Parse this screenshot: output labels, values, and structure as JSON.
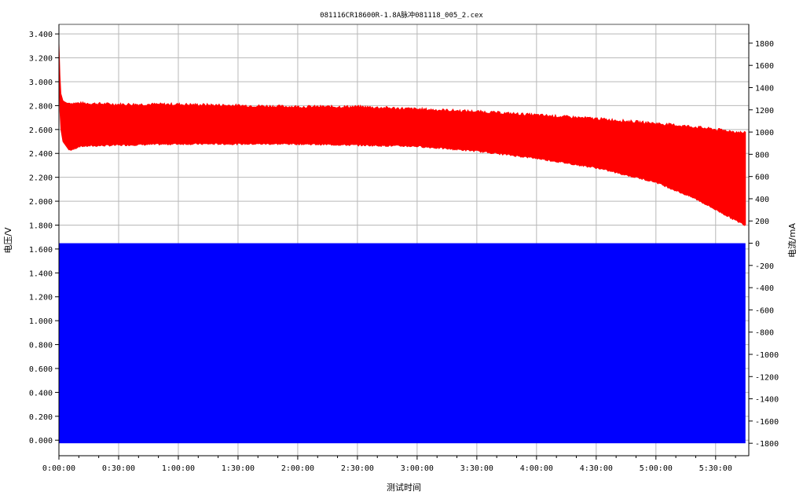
{
  "chart_data": {
    "type": "area",
    "title": "081116CR18600R-1.8A脉冲081118_005_2.cex",
    "xlabel": "测试时间",
    "ylabel_left": "电压/V",
    "ylabel_right": "电流/mA",
    "x_range_seconds": [
      0,
      20800
    ],
    "x_ticks": [
      "0:00:00",
      "0:30:00",
      "1:00:00",
      "1:30:00",
      "2:00:00",
      "2:30:00",
      "3:00:00",
      "3:30:00",
      "4:00:00",
      "4:30:00",
      "5:00:00",
      "5:30:00"
    ],
    "y_left_range": [
      -0.13,
      3.48
    ],
    "y_left_ticks": [
      "0.000",
      "0.200",
      "0.400",
      "0.600",
      "0.800",
      "1.000",
      "1.200",
      "1.400",
      "1.600",
      "1.800",
      "2.000",
      "2.200",
      "2.400",
      "2.600",
      "2.800",
      "3.000",
      "3.200",
      "3.400"
    ],
    "y_right_range": [
      -1912,
      1969
    ],
    "y_right_ticks": [
      "-1800",
      "-1600",
      "-1400",
      "-1200",
      "-1000",
      "-800",
      "-600",
      "-400",
      "-200",
      "0",
      "200",
      "400",
      "600",
      "800",
      "1000",
      "1200",
      "1400",
      "1600",
      "1800"
    ],
    "grid": true,
    "series": [
      {
        "axis": "left",
        "color": "#ff0000",
        "upper_envelope": {
          "x_seconds": [
            0,
            30,
            60,
            120,
            240,
            600,
            1800,
            3600,
            5400,
            7200,
            9000,
            10800,
            12600,
            14400,
            16200,
            18000,
            19200,
            20400,
            20700
          ],
          "y": [
            3.32,
            3.05,
            2.9,
            2.84,
            2.82,
            2.82,
            2.81,
            2.81,
            2.8,
            2.79,
            2.79,
            2.77,
            2.75,
            2.72,
            2.69,
            2.65,
            2.62,
            2.58,
            2.57
          ]
        },
        "lower_envelope": {
          "x_seconds": [
            0,
            30,
            60,
            120,
            300,
            420,
            600,
            1800,
            3600,
            5400,
            7200,
            9000,
            10800,
            12600,
            14400,
            16200,
            18000,
            19200,
            20400,
            20700
          ],
          "y": [
            3.3,
            2.75,
            2.6,
            2.5,
            2.43,
            2.43,
            2.46,
            2.47,
            2.48,
            2.48,
            2.48,
            2.47,
            2.46,
            2.42,
            2.36,
            2.28,
            2.16,
            2.02,
            1.84,
            1.8
          ]
        }
      },
      {
        "axis": "right",
        "color": "#0000ff",
        "x_seconds": [
          0,
          20700
        ],
        "y_max": 0,
        "y_min": -1800
      }
    ]
  }
}
